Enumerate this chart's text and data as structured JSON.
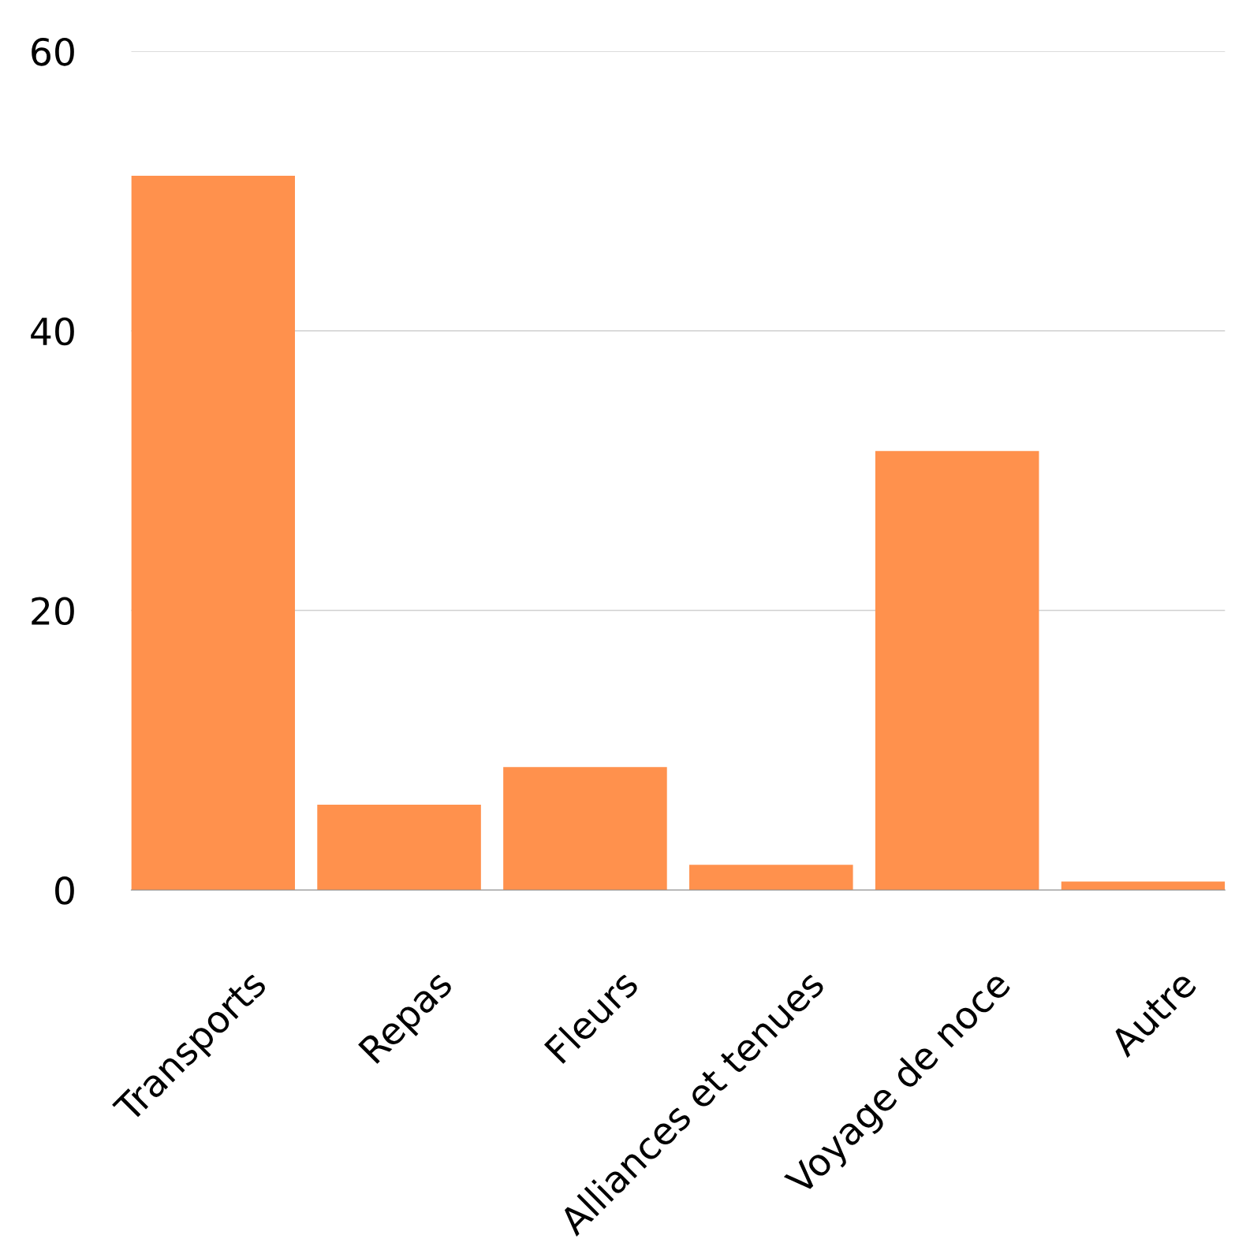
{
  "chart_data": {
    "type": "bar",
    "categories": [
      "Transports",
      "Repas",
      "Fleurs",
      "Alliances et tenues",
      "Voyage de noce",
      "Autre"
    ],
    "values": [
      51.1,
      6.1,
      8.8,
      1.8,
      31.4,
      0.6
    ],
    "color": "#ff914d",
    "ylim": [
      0,
      60
    ],
    "yticks": [
      0,
      20,
      40,
      60
    ],
    "grid": "y"
  }
}
